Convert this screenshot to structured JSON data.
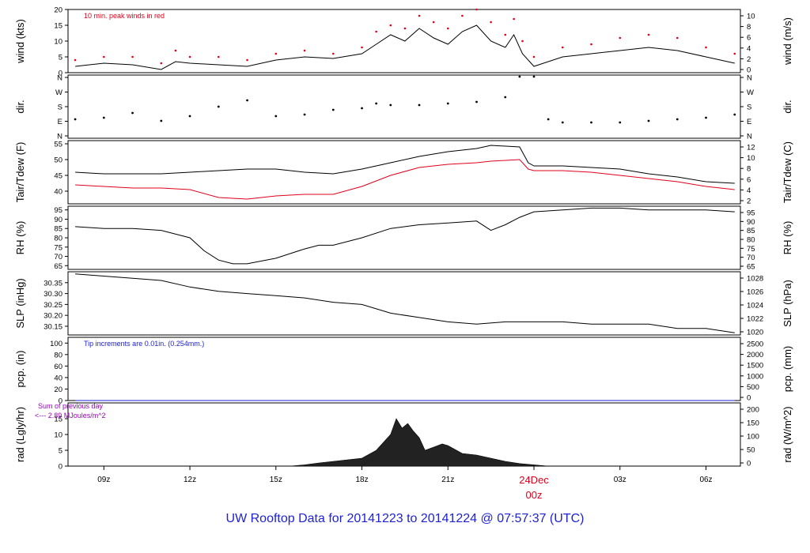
{
  "footer_title": "UW Rooftop Data for 20141223  to  20141224 @ 07:57:37  (UTC)",
  "colors": {
    "black": "#000000",
    "red": "#e0001a",
    "blue": "#1f22d6",
    "purple": "#9a00c0"
  },
  "chart_data": [
    {
      "type": "line",
      "id": "wind",
      "ylabel": "wind (kts)",
      "ylabel_right": "wind (m/s)",
      "ylim": [
        0,
        20
      ],
      "yticks": [
        0,
        5,
        10,
        15,
        20
      ],
      "yticks_right": [
        "0",
        "2",
        "4",
        "6",
        "8",
        "10"
      ],
      "annotation": "10 min. peak winds in red",
      "x": [
        8,
        9,
        10,
        11,
        11.5,
        12,
        13,
        14,
        15,
        16,
        17,
        18,
        18.5,
        19,
        19.5,
        20,
        20.5,
        21,
        21.5,
        22,
        22.5,
        23,
        23.3,
        23.6,
        24,
        25,
        26,
        27,
        28,
        29,
        30,
        31
      ],
      "series": [
        {
          "values": [
            2,
            3,
            2.5,
            1,
            3.5,
            3,
            2.5,
            2,
            4,
            5,
            4.5,
            6,
            9,
            12,
            10,
            14,
            11,
            9,
            13,
            15,
            10,
            8,
            12,
            6,
            2,
            5,
            6,
            7,
            8,
            7,
            5,
            3
          ]
        },
        {
          "values": [
            4,
            5,
            5,
            3,
            7,
            5,
            5,
            4,
            6,
            7,
            6,
            8,
            13,
            15,
            14,
            18,
            16,
            14,
            18,
            20,
            16,
            12,
            17,
            10,
            5,
            8,
            9,
            11,
            12,
            11,
            8,
            6
          ]
        }
      ]
    },
    {
      "type": "scatter",
      "id": "dir",
      "ylabel": "dir.",
      "ylabel_right": "dir.",
      "ylim": [
        0,
        4
      ],
      "yticks": [
        "N",
        "E",
        "S",
        "W",
        "N"
      ],
      "x": [
        8,
        9,
        10,
        11,
        12,
        13,
        14,
        15,
        16,
        17,
        18,
        18.5,
        19,
        20,
        21,
        22,
        23,
        23.5,
        24,
        24.5,
        25,
        26,
        27,
        28,
        29,
        30,
        31
      ],
      "values": [
        1.2,
        1.3,
        1.6,
        1.1,
        1.4,
        2.0,
        2.4,
        1.4,
        1.5,
        1.8,
        1.9,
        2.2,
        2.1,
        2.1,
        2.2,
        2.3,
        2.6,
        3.9,
        3.9,
        1.2,
        1.0,
        1.0,
        1.0,
        1.1,
        1.2,
        1.3,
        1.5
      ]
    },
    {
      "type": "line",
      "id": "temp",
      "ylabel": "Tair/Tdew (F)",
      "ylabel_right": "Tair/Tdew (C)",
      "ylim": [
        36,
        56
      ],
      "yticks": [
        40,
        45,
        50,
        55
      ],
      "yticks_right": [
        "2",
        "4",
        "6",
        "8",
        "10",
        "12"
      ],
      "x": [
        8,
        9,
        10,
        11,
        12,
        13,
        14,
        15,
        16,
        17,
        18,
        19,
        20,
        21,
        22,
        22.5,
        23.5,
        23.8,
        24,
        25,
        26,
        27,
        28,
        29,
        30,
        31
      ],
      "series": [
        {
          "values": [
            46,
            45.5,
            45.5,
            45.5,
            46,
            46.5,
            47,
            47,
            46,
            45.5,
            47,
            49,
            51,
            52.5,
            53.5,
            54.5,
            54,
            49,
            48,
            48,
            47.5,
            47,
            45.5,
            44.5,
            43,
            42.5
          ]
        },
        {
          "values": [
            42,
            41.5,
            41,
            41,
            40.5,
            38,
            37.5,
            38.5,
            39,
            39,
            41.5,
            45,
            47.5,
            48.5,
            49,
            49.5,
            50,
            47,
            46.5,
            46.5,
            46,
            45,
            44,
            43,
            41.5,
            40.5
          ]
        }
      ]
    },
    {
      "type": "line",
      "id": "rh",
      "ylabel": "RH (%)",
      "ylabel_right": "RH (%)",
      "ylim": [
        63,
        97
      ],
      "yticks": [
        65,
        70,
        75,
        80,
        85,
        90,
        95
      ],
      "yticks_right": [
        "65",
        "70",
        "75",
        "80",
        "85",
        "90",
        "95"
      ],
      "x": [
        8,
        9,
        10,
        11,
        12,
        12.5,
        13,
        13.5,
        14,
        15,
        16,
        16.5,
        17,
        18,
        19,
        20,
        21,
        22,
        22.5,
        23,
        23.5,
        24,
        25,
        26,
        27,
        28,
        29,
        30,
        31
      ],
      "series": [
        {
          "values": [
            86,
            85,
            85,
            84,
            80,
            73,
            68,
            66,
            66,
            69,
            74,
            76,
            76,
            80,
            85,
            87,
            88,
            89,
            84,
            87,
            91,
            94,
            95,
            96,
            96,
            95,
            95,
            95,
            94
          ]
        }
      ]
    },
    {
      "type": "line",
      "id": "slp",
      "ylabel": "SLP (inHg)",
      "ylabel_right": "SLP (hPa)",
      "ylim": [
        30.11,
        30.4
      ],
      "yticks": [
        30.15,
        30.2,
        30.25,
        30.3,
        30.35
      ],
      "yticks_right": [
        "1020",
        "1022",
        "1024",
        "1026",
        "1028"
      ],
      "x": [
        8,
        9,
        10,
        11,
        12,
        13,
        14,
        15,
        16,
        17,
        18,
        19,
        20,
        21,
        22,
        23,
        24,
        25,
        26,
        27,
        28,
        29,
        30,
        31
      ],
      "series": [
        {
          "values": [
            30.39,
            30.38,
            30.37,
            30.36,
            30.33,
            30.31,
            30.3,
            30.29,
            30.28,
            30.26,
            30.25,
            30.21,
            30.19,
            30.17,
            30.16,
            30.17,
            30.17,
            30.17,
            30.16,
            30.16,
            30.16,
            30.14,
            30.14,
            30.12
          ]
        }
      ]
    },
    {
      "type": "line",
      "id": "pcp",
      "ylabel": "pcp. (in)",
      "ylabel_right": "pcp. (mm)",
      "ylim": [
        0,
        110
      ],
      "yticks": [
        0,
        20,
        40,
        60,
        80,
        100
      ],
      "yticks_right": [
        "0",
        "500",
        "1000",
        "1500",
        "2000",
        "2500"
      ],
      "annotation": "Tip increments are 0.01in. (0.254mm.)",
      "x": [
        8,
        31
      ],
      "series": [
        {
          "values": [
            0,
            0
          ]
        }
      ]
    },
    {
      "type": "area",
      "id": "rad",
      "ylabel": "rad (Lgly/hr)",
      "ylabel_right": "rad (W/m^2)",
      "ylim": [
        0,
        20
      ],
      "yticks": [
        0,
        5,
        10,
        15
      ],
      "yticks_right": [
        "0",
        "50",
        "100",
        "150",
        "200"
      ],
      "annotation_lines": [
        "Sum of previous day",
        "<--- 2.89 MJoules/m^2"
      ],
      "x": [
        8,
        15.5,
        16,
        16.5,
        17,
        17.5,
        18,
        18.5,
        19,
        19.2,
        19.4,
        19.6,
        19.8,
        20,
        20.2,
        20.5,
        20.8,
        21,
        21.5,
        22,
        22.5,
        23,
        23.5,
        24,
        24.5,
        31
      ],
      "values": [
        0,
        0,
        0.4,
        1,
        1.5,
        2,
        2.5,
        5,
        10,
        15,
        12,
        13.5,
        11,
        9,
        5,
        6,
        7,
        6.5,
        4,
        3.5,
        2.5,
        1.5,
        0.8,
        0.4,
        0,
        0
      ]
    }
  ],
  "x_axis": {
    "ticks": [
      {
        "x": 9,
        "label": "09z"
      },
      {
        "x": 12,
        "label": "12z"
      },
      {
        "x": 15,
        "label": "15z"
      },
      {
        "x": 18,
        "label": "18z"
      },
      {
        "x": 21,
        "label": "21z"
      },
      {
        "x": 27,
        "label": "03z"
      },
      {
        "x": 30,
        "label": "06z"
      }
    ],
    "midnight": {
      "x": 24,
      "date": "24Dec",
      "label": "00z"
    }
  }
}
